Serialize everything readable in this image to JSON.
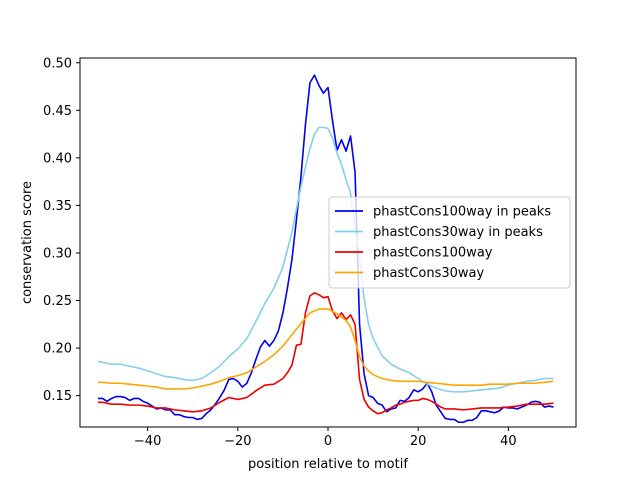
{
  "chart_data": {
    "type": "line",
    "title": "",
    "xlabel": "position relative to motif",
    "ylabel": "conservation score",
    "xlim": [
      -55,
      55
    ],
    "ylim": [
      0.117,
      0.505
    ],
    "xticks": [
      -40,
      -20,
      0,
      20,
      40
    ],
    "xtick_labels": [
      "−40",
      "−20",
      "0",
      "20",
      "40"
    ],
    "yticks": [
      0.15,
      0.2,
      0.25,
      0.3,
      0.35,
      0.4,
      0.45,
      0.5
    ],
    "ytick_labels": [
      "0.15",
      "0.20",
      "0.25",
      "0.30",
      "0.35",
      "0.40",
      "0.45",
      "0.50"
    ],
    "grid": false,
    "legend_position": "center-right",
    "series": [
      {
        "name": "phastCons100way in peaks",
        "color": "#0000ee",
        "points": [
          [
            -51,
            0.147
          ],
          [
            -50,
            0.147
          ],
          [
            -49,
            0.144
          ],
          [
            -48,
            0.147
          ],
          [
            -47,
            0.149
          ],
          [
            -46,
            0.149
          ],
          [
            -45,
            0.148
          ],
          [
            -44,
            0.145
          ],
          [
            -43,
            0.147
          ],
          [
            -42,
            0.147
          ],
          [
            -41,
            0.144
          ],
          [
            -40,
            0.142
          ],
          [
            -39,
            0.139
          ],
          [
            -38,
            0.136
          ],
          [
            -37,
            0.137
          ],
          [
            -36,
            0.135
          ],
          [
            -35,
            0.135
          ],
          [
            -34,
            0.13
          ],
          [
            -33,
            0.13
          ],
          [
            -32,
            0.128
          ],
          [
            -31,
            0.127
          ],
          [
            -30,
            0.127
          ],
          [
            -29,
            0.125
          ],
          [
            -28,
            0.126
          ],
          [
            -27,
            0.131
          ],
          [
            -26,
            0.135
          ],
          [
            -25,
            0.141
          ],
          [
            -24,
            0.148
          ],
          [
            -23,
            0.156
          ],
          [
            -22,
            0.167
          ],
          [
            -21,
            0.168
          ],
          [
            -20,
            0.165
          ],
          [
            -19,
            0.159
          ],
          [
            -18,
            0.163
          ],
          [
            -17,
            0.174
          ],
          [
            -16,
            0.188
          ],
          [
            -15,
            0.201
          ],
          [
            -14,
            0.208
          ],
          [
            -13,
            0.202
          ],
          [
            -12,
            0.208
          ],
          [
            -11,
            0.218
          ],
          [
            -10,
            0.237
          ],
          [
            -9,
            0.263
          ],
          [
            -8,
            0.293
          ],
          [
            -7,
            0.335
          ],
          [
            -6,
            0.38
          ],
          [
            -5,
            0.435
          ],
          [
            -4,
            0.479
          ],
          [
            -3,
            0.487
          ],
          [
            -2,
            0.476
          ],
          [
            -1,
            0.468
          ],
          [
            0,
            0.474
          ],
          [
            1,
            0.439
          ],
          [
            2,
            0.408
          ],
          [
            3,
            0.419
          ],
          [
            4,
            0.407
          ],
          [
            5,
            0.423
          ],
          [
            6,
            0.385
          ],
          [
            7,
            0.225
          ],
          [
            8,
            0.173
          ],
          [
            9,
            0.15
          ],
          [
            10,
            0.148
          ],
          [
            11,
            0.142
          ],
          [
            12,
            0.14
          ],
          [
            13,
            0.133
          ],
          [
            14,
            0.136
          ],
          [
            15,
            0.137
          ],
          [
            16,
            0.145
          ],
          [
            17,
            0.144
          ],
          [
            18,
            0.148
          ],
          [
            19,
            0.156
          ],
          [
            20,
            0.154
          ],
          [
            21,
            0.157
          ],
          [
            22,
            0.163
          ],
          [
            23,
            0.154
          ],
          [
            24,
            0.14
          ],
          [
            25,
            0.133
          ],
          [
            26,
            0.126
          ],
          [
            27,
            0.125
          ],
          [
            28,
            0.125
          ],
          [
            29,
            0.122
          ],
          [
            30,
            0.122
          ],
          [
            31,
            0.124
          ],
          [
            32,
            0.124
          ],
          [
            33,
            0.127
          ],
          [
            34,
            0.134
          ],
          [
            35,
            0.134
          ],
          [
            36,
            0.133
          ],
          [
            37,
            0.132
          ],
          [
            38,
            0.134
          ],
          [
            39,
            0.138
          ],
          [
            40,
            0.137
          ],
          [
            41,
            0.137
          ],
          [
            42,
            0.136
          ],
          [
            43,
            0.138
          ],
          [
            44,
            0.14
          ],
          [
            45,
            0.143
          ],
          [
            46,
            0.144
          ],
          [
            47,
            0.143
          ],
          [
            48,
            0.138
          ],
          [
            49,
            0.139
          ],
          [
            50,
            0.138
          ]
        ]
      },
      {
        "name": "phastCons30way in peaks",
        "color": "#87ceeb",
        "points": [
          [
            -51,
            0.186
          ],
          [
            -50,
            0.185
          ],
          [
            -48,
            0.183
          ],
          [
            -46,
            0.183
          ],
          [
            -44,
            0.181
          ],
          [
            -42,
            0.179
          ],
          [
            -40,
            0.176
          ],
          [
            -38,
            0.173
          ],
          [
            -36,
            0.17
          ],
          [
            -34,
            0.169
          ],
          [
            -32,
            0.167
          ],
          [
            -30,
            0.166
          ],
          [
            -28,
            0.168
          ],
          [
            -26,
            0.174
          ],
          [
            -24,
            0.181
          ],
          [
            -22,
            0.191
          ],
          [
            -20,
            0.199
          ],
          [
            -18,
            0.21
          ],
          [
            -16,
            0.228
          ],
          [
            -14,
            0.247
          ],
          [
            -12,
            0.263
          ],
          [
            -10,
            0.285
          ],
          [
            -8,
            0.322
          ],
          [
            -6,
            0.37
          ],
          [
            -4,
            0.41
          ],
          [
            -3,
            0.425
          ],
          [
            -2,
            0.432
          ],
          [
            -1,
            0.432
          ],
          [
            0,
            0.431
          ],
          [
            1,
            0.421
          ],
          [
            2,
            0.405
          ],
          [
            3,
            0.393
          ],
          [
            4,
            0.377
          ],
          [
            5,
            0.363
          ],
          [
            6,
            0.327
          ],
          [
            7,
            0.295
          ],
          [
            8,
            0.252
          ],
          [
            9,
            0.225
          ],
          [
            10,
            0.21
          ],
          [
            12,
            0.192
          ],
          [
            14,
            0.183
          ],
          [
            16,
            0.178
          ],
          [
            18,
            0.174
          ],
          [
            20,
            0.168
          ],
          [
            22,
            0.162
          ],
          [
            24,
            0.158
          ],
          [
            26,
            0.155
          ],
          [
            28,
            0.154
          ],
          [
            30,
            0.154
          ],
          [
            32,
            0.155
          ],
          [
            34,
            0.156
          ],
          [
            36,
            0.157
          ],
          [
            38,
            0.158
          ],
          [
            40,
            0.161
          ],
          [
            42,
            0.163
          ],
          [
            44,
            0.165
          ],
          [
            46,
            0.166
          ],
          [
            48,
            0.168
          ],
          [
            50,
            0.168
          ]
        ]
      },
      {
        "name": "phastCons100way",
        "color": "#ee0000",
        "points": [
          [
            -51,
            0.143
          ],
          [
            -50,
            0.143
          ],
          [
            -48,
            0.141
          ],
          [
            -46,
            0.141
          ],
          [
            -44,
            0.14
          ],
          [
            -42,
            0.14
          ],
          [
            -40,
            0.139
          ],
          [
            -38,
            0.137
          ],
          [
            -36,
            0.137
          ],
          [
            -34,
            0.135
          ],
          [
            -32,
            0.134
          ],
          [
            -30,
            0.133
          ],
          [
            -28,
            0.134
          ],
          [
            -26,
            0.137
          ],
          [
            -24,
            0.143
          ],
          [
            -22,
            0.148
          ],
          [
            -20,
            0.146
          ],
          [
            -18,
            0.148
          ],
          [
            -16,
            0.155
          ],
          [
            -14,
            0.161
          ],
          [
            -12,
            0.162
          ],
          [
            -10,
            0.168
          ],
          [
            -9,
            0.174
          ],
          [
            -8,
            0.182
          ],
          [
            -7,
            0.203
          ],
          [
            -6,
            0.204
          ],
          [
            -5,
            0.237
          ],
          [
            -4,
            0.255
          ],
          [
            -3,
            0.258
          ],
          [
            -2,
            0.256
          ],
          [
            -1,
            0.253
          ],
          [
            0,
            0.254
          ],
          [
            1,
            0.239
          ],
          [
            2,
            0.231
          ],
          [
            3,
            0.237
          ],
          [
            4,
            0.23
          ],
          [
            5,
            0.235
          ],
          [
            6,
            0.225
          ],
          [
            7,
            0.167
          ],
          [
            8,
            0.146
          ],
          [
            9,
            0.138
          ],
          [
            10,
            0.134
          ],
          [
            11,
            0.131
          ],
          [
            12,
            0.132
          ],
          [
            13,
            0.135
          ],
          [
            14,
            0.137
          ],
          [
            15,
            0.14
          ],
          [
            16,
            0.141
          ],
          [
            17,
            0.143
          ],
          [
            18,
            0.144
          ],
          [
            19,
            0.145
          ],
          [
            20,
            0.145
          ],
          [
            21,
            0.147
          ],
          [
            22,
            0.146
          ],
          [
            23,
            0.144
          ],
          [
            24,
            0.141
          ],
          [
            25,
            0.138
          ],
          [
            26,
            0.136
          ],
          [
            27,
            0.136
          ],
          [
            28,
            0.136
          ],
          [
            30,
            0.135
          ],
          [
            32,
            0.136
          ],
          [
            34,
            0.137
          ],
          [
            36,
            0.137
          ],
          [
            38,
            0.137
          ],
          [
            40,
            0.138
          ],
          [
            42,
            0.139
          ],
          [
            44,
            0.141
          ],
          [
            46,
            0.141
          ],
          [
            48,
            0.141
          ],
          [
            50,
            0.142
          ]
        ]
      },
      {
        "name": "phastCons30way",
        "color": "#ffa500",
        "points": [
          [
            -51,
            0.164
          ],
          [
            -50,
            0.164
          ],
          [
            -48,
            0.163
          ],
          [
            -46,
            0.163
          ],
          [
            -44,
            0.162
          ],
          [
            -42,
            0.161
          ],
          [
            -40,
            0.16
          ],
          [
            -38,
            0.159
          ],
          [
            -36,
            0.157
          ],
          [
            -34,
            0.157
          ],
          [
            -32,
            0.157
          ],
          [
            -30,
            0.158
          ],
          [
            -28,
            0.16
          ],
          [
            -26,
            0.162
          ],
          [
            -24,
            0.165
          ],
          [
            -22,
            0.169
          ],
          [
            -20,
            0.171
          ],
          [
            -18,
            0.174
          ],
          [
            -16,
            0.18
          ],
          [
            -14,
            0.186
          ],
          [
            -12,
            0.193
          ],
          [
            -10,
            0.202
          ],
          [
            -8,
            0.214
          ],
          [
            -6,
            0.226
          ],
          [
            -4,
            0.237
          ],
          [
            -2,
            0.241
          ],
          [
            0,
            0.241
          ],
          [
            2,
            0.236
          ],
          [
            4,
            0.229
          ],
          [
            5,
            0.222
          ],
          [
            6,
            0.208
          ],
          [
            7,
            0.191
          ],
          [
            8,
            0.181
          ],
          [
            9,
            0.176
          ],
          [
            10,
            0.172
          ],
          [
            12,
            0.168
          ],
          [
            14,
            0.166
          ],
          [
            16,
            0.165
          ],
          [
            18,
            0.165
          ],
          [
            20,
            0.165
          ],
          [
            22,
            0.164
          ],
          [
            24,
            0.163
          ],
          [
            26,
            0.162
          ],
          [
            28,
            0.161
          ],
          [
            30,
            0.161
          ],
          [
            32,
            0.161
          ],
          [
            34,
            0.161
          ],
          [
            36,
            0.162
          ],
          [
            38,
            0.162
          ],
          [
            40,
            0.162
          ],
          [
            42,
            0.163
          ],
          [
            44,
            0.163
          ],
          [
            46,
            0.163
          ],
          [
            48,
            0.164
          ],
          [
            50,
            0.165
          ]
        ]
      }
    ]
  }
}
